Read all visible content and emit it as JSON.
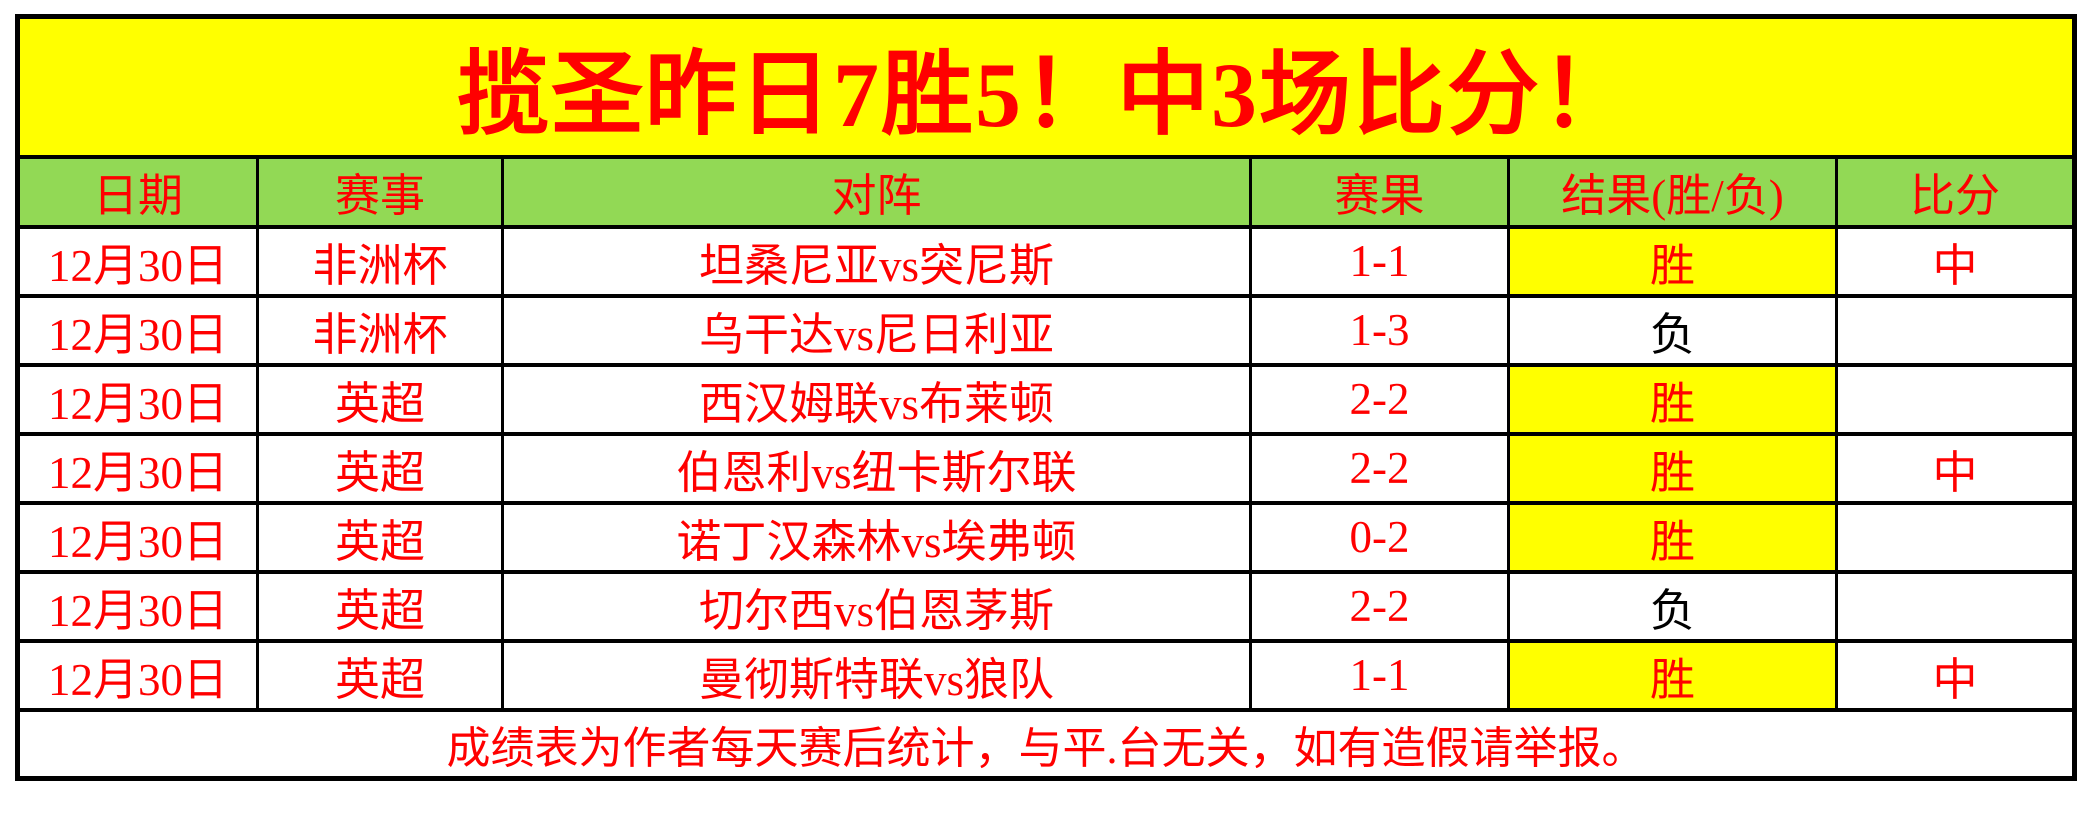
{
  "banner": {
    "title": "揽圣昨日7胜5！中3场比分！"
  },
  "table": {
    "columns": {
      "date": "日期",
      "league": "赛事",
      "match": "对阵",
      "score": "赛果",
      "result": "结果(胜/负)",
      "hit": "比分"
    },
    "rows": [
      {
        "date": "12月30日",
        "league": "非洲杯",
        "match": "坦桑尼亚vs突尼斯",
        "score": "1-1",
        "result": "胜",
        "hit": "中"
      },
      {
        "date": "12月30日",
        "league": "非洲杯",
        "match": "乌干达vs尼日利亚",
        "score": "1-3",
        "result": "负",
        "hit": ""
      },
      {
        "date": "12月30日",
        "league": "英超",
        "match": "西汉姆联vs布莱顿",
        "score": "2-2",
        "result": "胜",
        "hit": ""
      },
      {
        "date": "12月30日",
        "league": "英超",
        "match": "伯恩利vs纽卡斯尔联",
        "score": "2-2",
        "result": "胜",
        "hit": "中"
      },
      {
        "date": "12月30日",
        "league": "英超",
        "match": "诺丁汉森林vs埃弗顿",
        "score": "0-2",
        "result": "胜",
        "hit": ""
      },
      {
        "date": "12月30日",
        "league": "英超",
        "match": "切尔西vs伯恩茅斯",
        "score": "2-2",
        "result": "负",
        "hit": ""
      },
      {
        "date": "12月30日",
        "league": "英超",
        "match": "曼彻斯特联vs狼队",
        "score": "1-1",
        "result": "胜",
        "hit": "中"
      }
    ],
    "win_label": "胜",
    "loss_label": "负",
    "footer": "成绩表为作者每天赛后统计，与平.台无关，如有造假请举报。"
  },
  "colors": {
    "banner_yellow": "#FFFF00",
    "header_green": "#92D955",
    "win_cell_yellow": "#FFFF00",
    "text_red": "#FF0000",
    "loss_text_black": "#000000",
    "border_black": "#000000",
    "page_white": "#FFFFFF"
  }
}
